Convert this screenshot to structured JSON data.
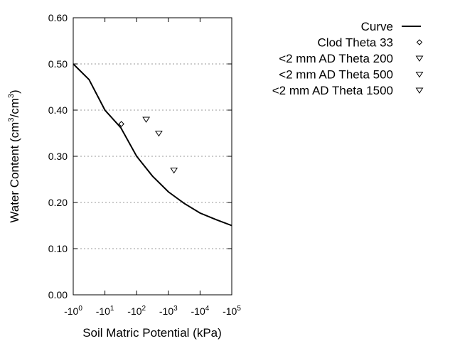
{
  "chart_data": {
    "type": "scatter",
    "xlabel": "Soil Matric Potential (kPa)",
    "ylabel_main": "Water Content (cm",
    "ylabel_sup1": "3",
    "ylabel_mid": "/cm",
    "ylabel_sup2": "3",
    "ylabel_end": ")",
    "xscale": "log",
    "xlim_log10": [
      0,
      5
    ],
    "ylim": [
      0,
      0.6
    ],
    "x_tick_base": "-10",
    "x_tick_exponents": [
      "0",
      "1",
      "2",
      "3",
      "4",
      "5"
    ],
    "y_ticks": [
      0,
      0.1,
      0.2,
      0.3,
      0.4,
      0.5,
      0.6
    ],
    "y_tick_labels": [
      "0.00",
      "0.10",
      "0.20",
      "0.30",
      "0.40",
      "0.50",
      "0.60"
    ],
    "grid": "horizontal dotted",
    "legend_placement": "top-right outside",
    "series": [
      {
        "name": "Curve",
        "kind": "line",
        "x": [
          1,
          3.16,
          10,
          31.6,
          100,
          316,
          1000,
          3162,
          10000,
          31623,
          100000
        ],
        "y": [
          0.5,
          0.466,
          0.4,
          0.362,
          0.3,
          0.257,
          0.223,
          0.198,
          0.177,
          0.163,
          0.15
        ]
      },
      {
        "name": "Clod Theta 33",
        "kind": "diamond",
        "x": [
          33
        ],
        "y": [
          0.37
        ]
      },
      {
        "name": "<2 mm AD Theta 200",
        "kind": "triangle",
        "x": [
          200
        ],
        "y": [
          0.38
        ]
      },
      {
        "name": "<2 mm AD Theta 500",
        "kind": "triangle",
        "x": [
          500
        ],
        "y": [
          0.35
        ]
      },
      {
        "name": "<2 mm AD Theta 1500",
        "kind": "triangle",
        "x": [
          1500
        ],
        "y": [
          0.27
        ]
      }
    ]
  }
}
